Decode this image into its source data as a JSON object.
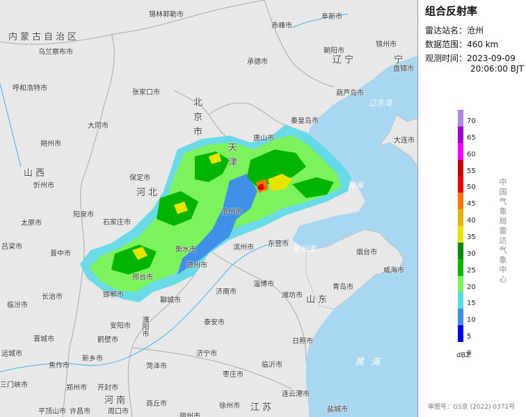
{
  "panel": {
    "title": "组合反射率",
    "station_label": "雷达站名：",
    "station_value": "沧州",
    "range_label": "数据范围：",
    "range_value": "460 km",
    "time_label": "观测时间：",
    "time_value_date": "2023-09-09",
    "time_value_clock": "20:06:00 BJT",
    "org": "中国气象局雷达气象中心",
    "unit": "dBZ",
    "review": "审图号：GS京 (2022) 0372号"
  },
  "legend": [
    {
      "value": "70",
      "color": "#b087e6"
    },
    {
      "value": "65",
      "color": "#9a00c8"
    },
    {
      "value": "60",
      "color": "#ff00ff"
    },
    {
      "value": "55",
      "color": "#c20000"
    },
    {
      "value": "50",
      "color": "#e50000"
    },
    {
      "value": "45",
      "color": "#ff7700"
    },
    {
      "value": "40",
      "color": "#e5b200"
    },
    {
      "value": "35",
      "color": "#e5e500"
    },
    {
      "value": "30",
      "color": "#008a00"
    },
    {
      "value": "25",
      "color": "#00b400"
    },
    {
      "value": "20",
      "color": "#7cf25c"
    },
    {
      "value": "15",
      "color": "#5cd9e5"
    },
    {
      "value": "10",
      "color": "#3f91e8"
    },
    {
      "value": "5",
      "color": "#0000e3"
    },
    {
      "value": "0",
      "color": "#0000e3"
    }
  ],
  "map": {
    "colors": {
      "land": "#e8e8e8",
      "sea": "#a9d6f0",
      "border": "#aaaaaa"
    },
    "regions": [
      "内蒙古自治区",
      "河北",
      "北京市",
      "天津",
      "山西",
      "山东",
      "河南",
      "江苏",
      "辽宁",
      "宁"
    ],
    "seas": [
      "辽东湾",
      "渤海",
      "莱州湾",
      "黄海"
    ],
    "cities": [
      "锡林郭勒市",
      "阜新市",
      "赤峰市",
      "乌兰察布市",
      "锦州市",
      "承德市",
      "朝阳市",
      "盘锦市",
      "呼和浩特市",
      "张家口市",
      "葫芦岛市",
      "大同市",
      "秦皇岛市",
      "朔州市",
      "唐山市",
      "大连市",
      "忻州市",
      "保定市",
      "太原市",
      "阳泉市",
      "石家庄市",
      "沧州市",
      "东营市",
      "吕梁市",
      "晋中市",
      "衡水市",
      "滨州市",
      "烟台市",
      "威海市",
      "邢台市",
      "长治市",
      "德州市",
      "淄博市",
      "青岛市",
      "临汾市",
      "邯郸市",
      "聊城市",
      "济南市",
      "潍坊市",
      "泰安市",
      "晋城市",
      "安阳市",
      "濮阳市",
      "运城市",
      "鹤壁市",
      "日照市",
      "新乡市",
      "济宁市",
      "临沂市",
      "焦作市",
      "菏泽市",
      "三门峡市",
      "郑州市",
      "开封市",
      "枣庄市",
      "连云港市",
      "许昌市",
      "平顶山市",
      "周口市",
      "商丘市",
      "徐州市",
      "宿州市",
      "盐城市",
      "临沂市"
    ]
  }
}
